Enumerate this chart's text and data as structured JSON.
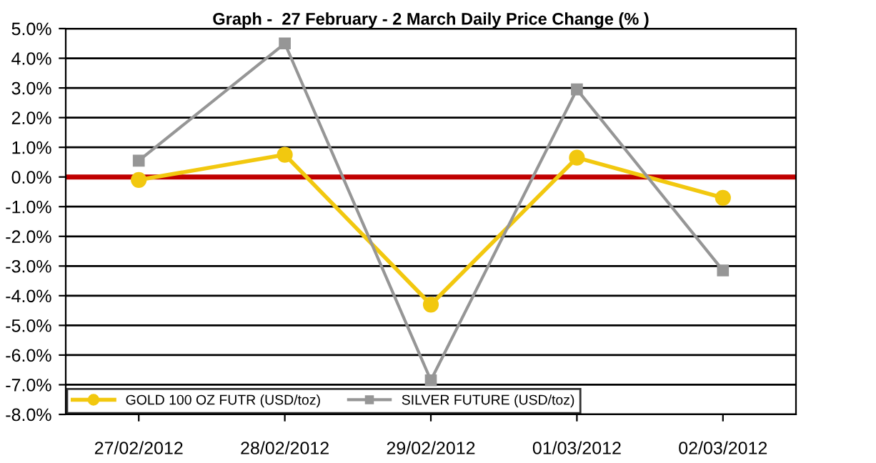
{
  "chart_data": {
    "type": "line",
    "title": "Graph -  27 February - 2 March Daily Price Change (% )",
    "categories": [
      "27/02/2012",
      "28/02/2012",
      "29/02/2012",
      "01/03/2012",
      "02/03/2012"
    ],
    "series": [
      {
        "name": "GOLD 100 OZ FUTR (USD/toz)",
        "color": "#f2c80f",
        "marker": "circle",
        "values": [
          -0.1,
          0.75,
          -4.3,
          0.65,
          -0.7
        ]
      },
      {
        "name": "SILVER FUTURE (USD/toz)",
        "color": "#969696",
        "marker": "square",
        "values": [
          0.55,
          4.5,
          -6.85,
          2.95,
          -3.15
        ]
      }
    ],
    "ylim": [
      -8,
      5
    ],
    "yticks": [
      {
        "value": -8,
        "label": "-8.0%"
      },
      {
        "value": -7,
        "label": "-7.0%"
      },
      {
        "value": -6,
        "label": "-6.0%"
      },
      {
        "value": -5,
        "label": "-5.0%"
      },
      {
        "value": -4,
        "label": "-4.0%"
      },
      {
        "value": -3,
        "label": "-3.0%"
      },
      {
        "value": -2,
        "label": "-2.0%"
      },
      {
        "value": -1,
        "label": "-1.0%"
      },
      {
        "value": 0,
        "label": "0.0%"
      },
      {
        "value": 1,
        "label": "1.0%"
      },
      {
        "value": 2,
        "label": "2.0%"
      },
      {
        "value": 3,
        "label": "3.0%"
      },
      {
        "value": 4,
        "label": "4.0%"
      },
      {
        "value": 5,
        "label": "5.0%"
      }
    ],
    "ref_lines": [
      {
        "axis": "y",
        "value": 0,
        "label": null,
        "color": "#c00000"
      }
    ],
    "grid": "y",
    "legend": "bottom left",
    "line_style": "solid"
  }
}
